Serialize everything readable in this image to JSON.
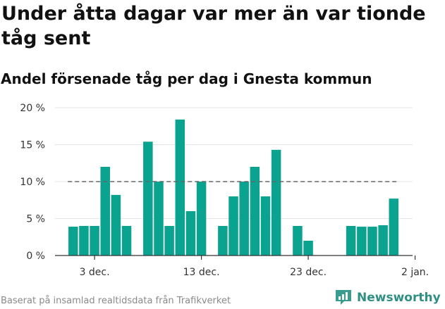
{
  "title": "Under åtta dagar var mer än var tionde tåg sent",
  "subtitle": "Andel försenade tåg per dag i Gnesta kommun",
  "source": "Baserat på insamlad realtidsdata från Trafikverket",
  "brand": {
    "name": "Newsworthy",
    "icon": "newsworthy-logo-icon",
    "color": "#3a9b8f"
  },
  "chart_data": {
    "type": "bar",
    "title": "Under åtta dagar var mer än var tionde tåg sent",
    "subtitle": "Andel försenade tåg per dag i Gnesta kommun",
    "xlabel": "",
    "ylabel": "",
    "ylim": [
      0,
      20
    ],
    "ytick_values": [
      0,
      5,
      10,
      15,
      20
    ],
    "yticks": [
      "0 %",
      "5 %",
      "10 %",
      "15 %",
      "20 %"
    ],
    "xticks": [
      {
        "day": 3,
        "label": "3 dec."
      },
      {
        "day": 13,
        "label": "13 dec."
      },
      {
        "day": 23,
        "label": "23 dec."
      },
      {
        "day": 33,
        "label": "2 jan."
      }
    ],
    "reference_line": {
      "value": 10,
      "from_day": 1,
      "to_day": 31
    },
    "bar_color": "#0aa390",
    "reference_color": "#666666",
    "grid": true,
    "legend": false,
    "bars": [
      {
        "day": 1,
        "value": 3.9
      },
      {
        "day": 2,
        "value": 4.0
      },
      {
        "day": 3,
        "value": 4.0
      },
      {
        "day": 4,
        "value": 12.0
      },
      {
        "day": 5,
        "value": 8.2
      },
      {
        "day": 6,
        "value": 4.0
      },
      {
        "day": 7,
        "value": 0
      },
      {
        "day": 8,
        "value": 15.4
      },
      {
        "day": 9,
        "value": 10.0
      },
      {
        "day": 10,
        "value": 4.0
      },
      {
        "day": 11,
        "value": 18.4
      },
      {
        "day": 12,
        "value": 6.0
      },
      {
        "day": 13,
        "value": 10.0
      },
      {
        "day": 14,
        "value": 0
      },
      {
        "day": 15,
        "value": 4.0
      },
      {
        "day": 16,
        "value": 8.0
      },
      {
        "day": 17,
        "value": 10.0
      },
      {
        "day": 18,
        "value": 12.0
      },
      {
        "day": 19,
        "value": 8.0
      },
      {
        "day": 20,
        "value": 14.3
      },
      {
        "day": 21,
        "value": 0
      },
      {
        "day": 22,
        "value": 4.0
      },
      {
        "day": 23,
        "value": 2.0
      },
      {
        "day": 24,
        "value": 0
      },
      {
        "day": 25,
        "value": 0
      },
      {
        "day": 26,
        "value": 0
      },
      {
        "day": 27,
        "value": 4.0
      },
      {
        "day": 28,
        "value": 3.9
      },
      {
        "day": 29,
        "value": 3.9
      },
      {
        "day": 30,
        "value": 4.1
      },
      {
        "day": 31,
        "value": 7.7
      }
    ]
  }
}
